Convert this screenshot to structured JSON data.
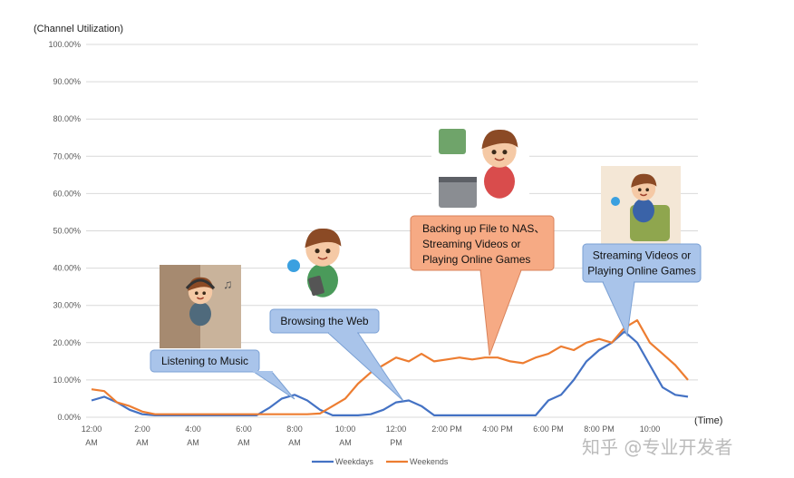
{
  "chart_data": {
    "type": "line",
    "ylabel": "(Channel Utilization)",
    "xlabel": "(Time)",
    "ylim": [
      0,
      100
    ],
    "y_ticks": [
      "0.00%",
      "10.00%",
      "20.00%",
      "30.00%",
      "40.00%",
      "50.00%",
      "60.00%",
      "70.00%",
      "80.00%",
      "90.00%",
      "100.00%"
    ],
    "x_ticks": [
      {
        "hour": 0,
        "line1": "12:00",
        "line2": "AM"
      },
      {
        "hour": 2,
        "line1": "2:00",
        "line2": "AM"
      },
      {
        "hour": 4,
        "line1": "4:00",
        "line2": "AM"
      },
      {
        "hour": 6,
        "line1": "6:00",
        "line2": "AM"
      },
      {
        "hour": 8,
        "line1": "8:00",
        "line2": "AM"
      },
      {
        "hour": 10,
        "line1": "10:00",
        "line2": "AM"
      },
      {
        "hour": 12,
        "line1": "12:00",
        "line2": "PM"
      },
      {
        "hour": 14,
        "line1": "2:00 PM",
        "line2": ""
      },
      {
        "hour": 16,
        "line1": "4:00 PM",
        "line2": ""
      },
      {
        "hour": 18,
        "line1": "6:00 PM",
        "line2": ""
      },
      {
        "hour": 20,
        "line1": "8:00 PM",
        "line2": ""
      },
      {
        "hour": 22,
        "line1": "10:00",
        "line2": ""
      }
    ],
    "x_hours": [
      0,
      0.5,
      1,
      1.5,
      2,
      2.5,
      3,
      3.5,
      4,
      4.5,
      5,
      5.5,
      6,
      6.5,
      7,
      7.5,
      8,
      8.5,
      9,
      9.5,
      10,
      10.5,
      11,
      11.5,
      12,
      12.5,
      13,
      13.5,
      14,
      14.5,
      15,
      15.5,
      16,
      16.5,
      17,
      17.5,
      18,
      18.5,
      19,
      19.5,
      20,
      20.5,
      21,
      21.5,
      22,
      22.5,
      23,
      23.5
    ],
    "series": [
      {
        "name": "Weekdays",
        "color": "#4472C4",
        "values": [
          4.5,
          5.5,
          4,
          2,
          0.8,
          0.5,
          0.5,
          0.5,
          0.5,
          0.5,
          0.5,
          0.5,
          0.5,
          0.5,
          2.5,
          5,
          6,
          4.5,
          2,
          0.5,
          0.5,
          0.5,
          0.8,
          2,
          4,
          4.5,
          3,
          0.5,
          0.5,
          0.5,
          0.5,
          0.5,
          0.5,
          0.5,
          0.5,
          0.5,
          4.5,
          6,
          10,
          15,
          18,
          20,
          23,
          20,
          14,
          8,
          6,
          5.5
        ]
      },
      {
        "name": "Weekends",
        "color": "#ED7D31",
        "values": [
          7.5,
          7,
          4,
          3,
          1.5,
          0.8,
          0.8,
          0.8,
          0.8,
          0.8,
          0.8,
          0.8,
          0.8,
          0.8,
          0.8,
          0.8,
          0.8,
          0.8,
          1,
          3,
          5,
          9,
          12,
          14,
          16,
          15,
          17,
          15,
          15.5,
          16,
          15.5,
          16,
          16,
          15,
          14.5,
          16,
          17,
          19,
          18,
          20,
          21,
          20,
          24,
          26,
          20,
          17,
          14,
          10
        ]
      }
    ]
  },
  "callouts": [
    {
      "id": "music",
      "lines": [
        "Listening to Music"
      ],
      "color": "#A9C4EA"
    },
    {
      "id": "web",
      "lines": [
        "Browsing the Web"
      ],
      "color": "#A9C4EA"
    },
    {
      "id": "nas",
      "lines": [
        "Backing up File to NAS、",
        "Streaming Videos or",
        "Playing Online Games"
      ],
      "color": "#F6AA84"
    },
    {
      "id": "stream",
      "lines": [
        "Streaming Videos or",
        "Playing Online Games"
      ],
      "color": "#A9C4EA"
    }
  ],
  "watermark": "知乎 @专业开发者"
}
